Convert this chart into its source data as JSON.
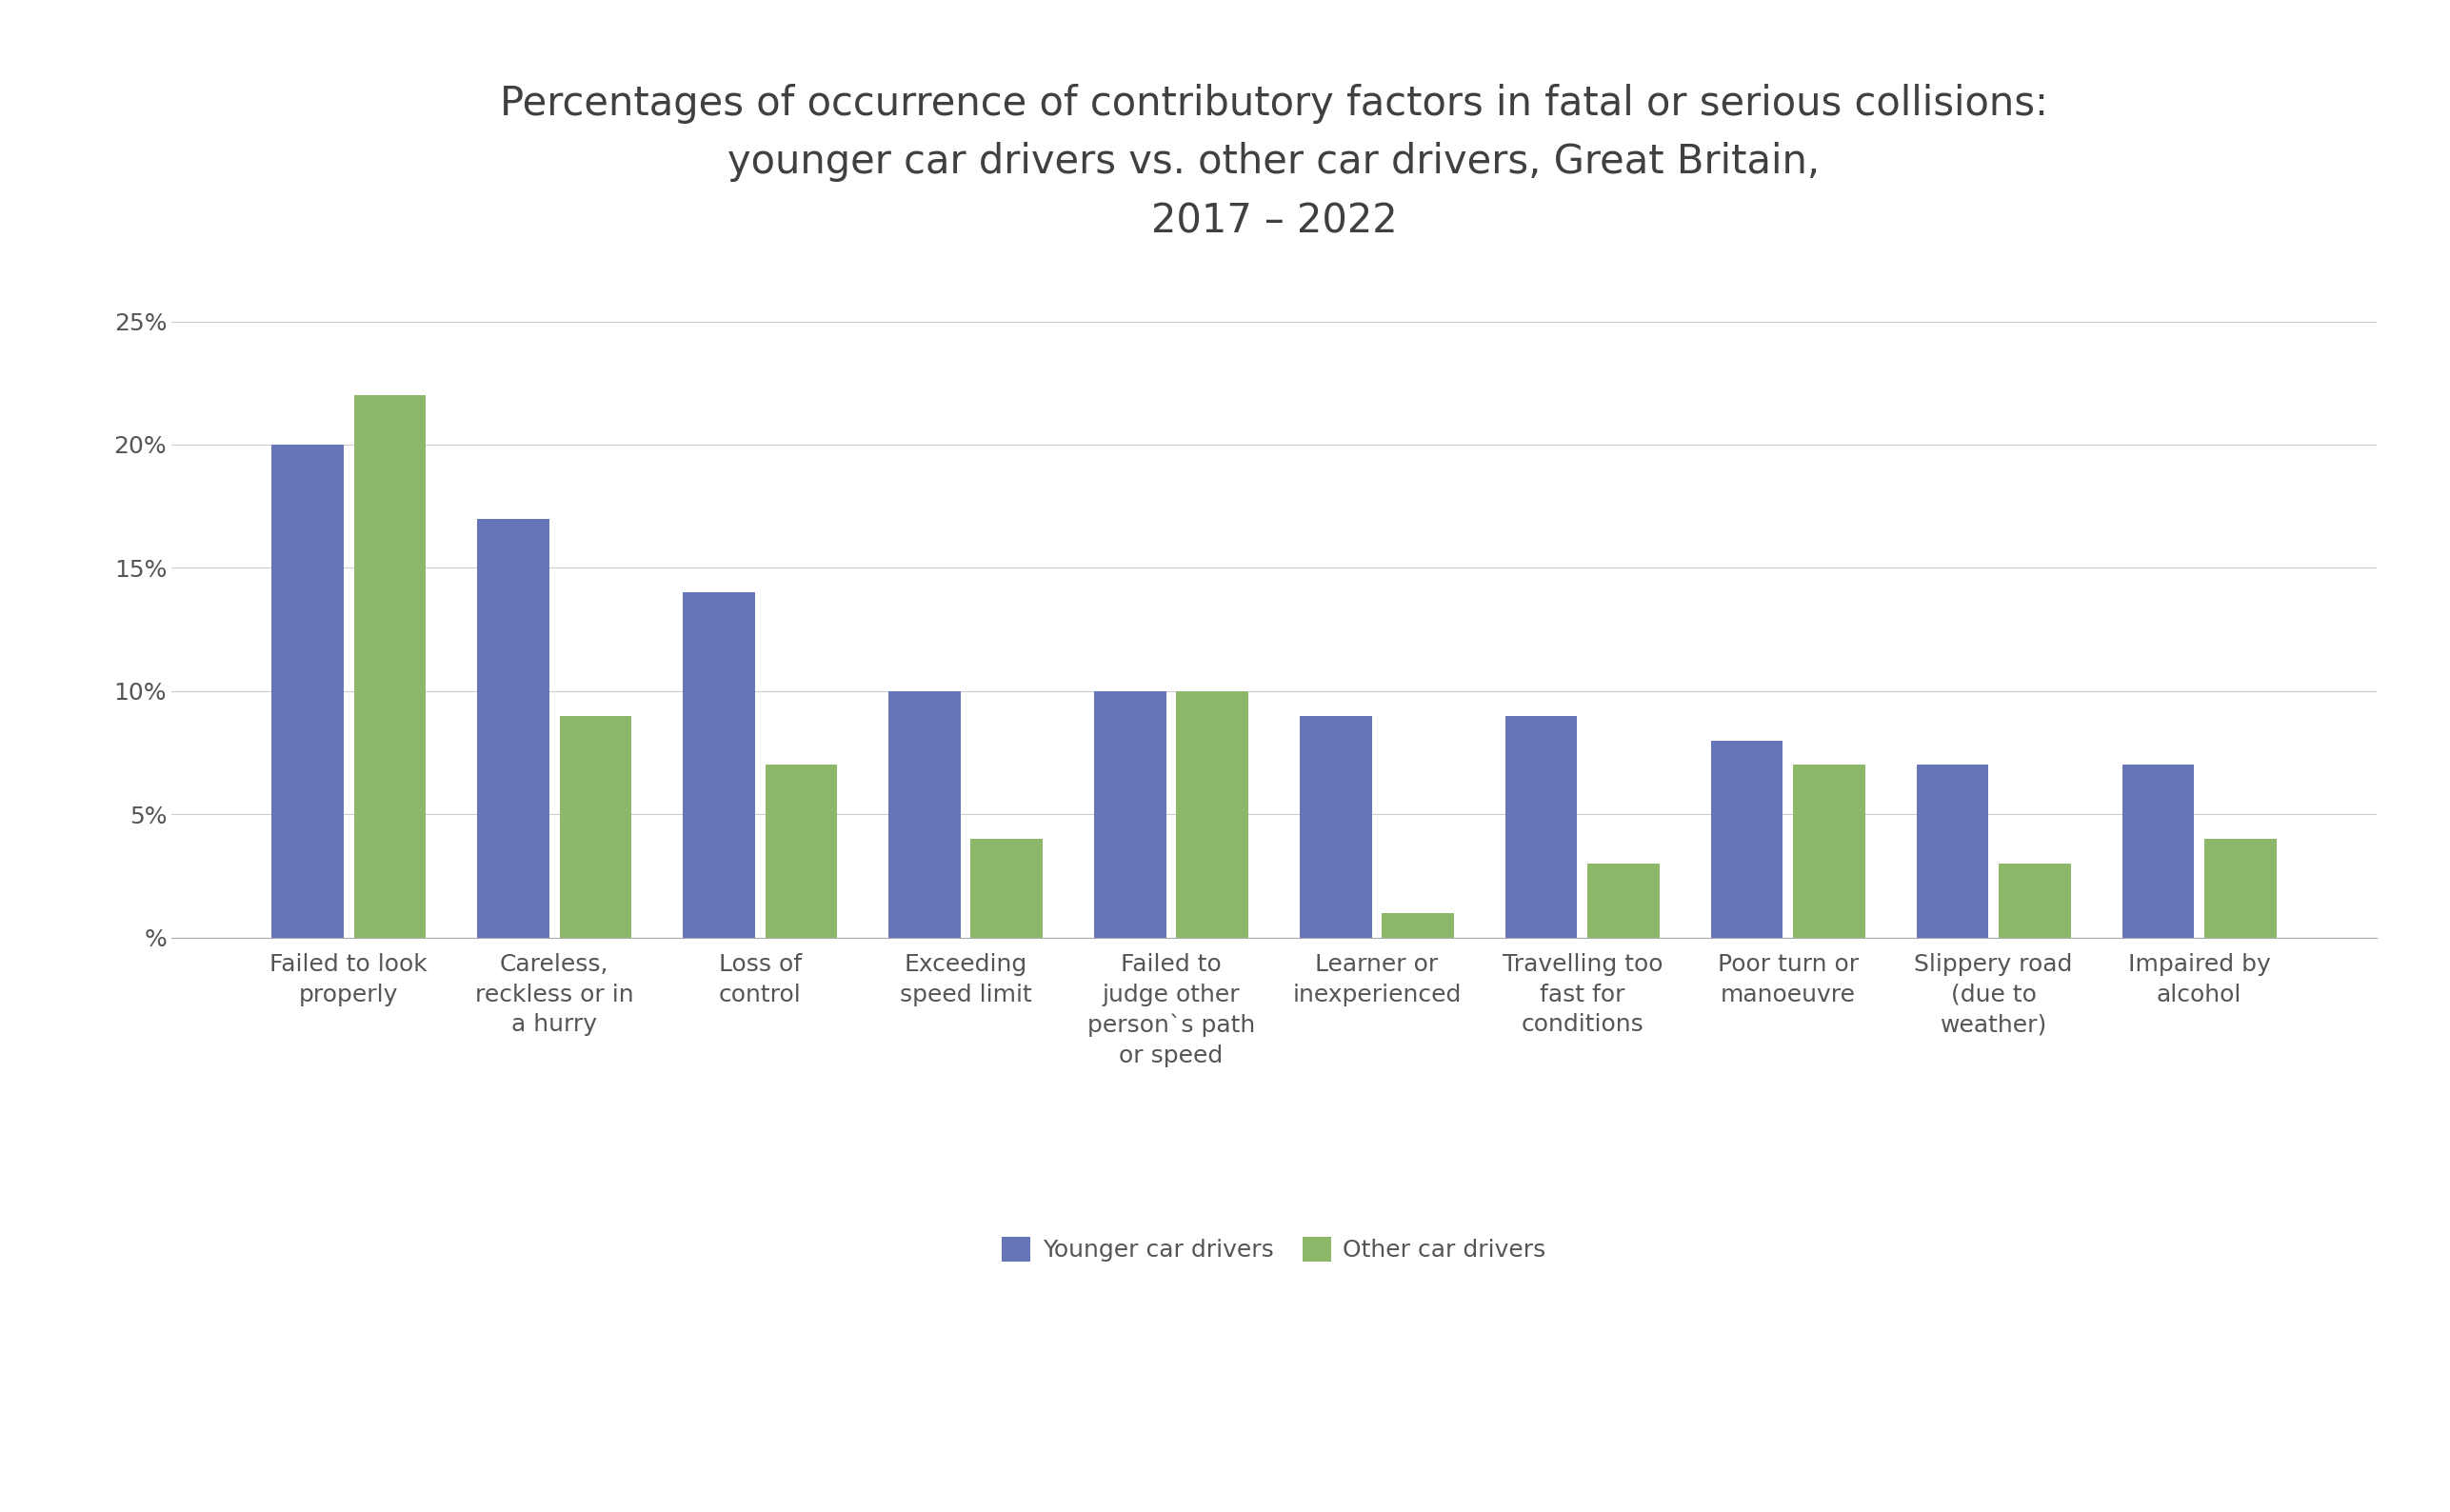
{
  "title": "Percentages of occurrence of contributory factors in fatal or serious collisions:\nyounger car drivers vs. other car drivers, Great Britain,\n2017 – 2022",
  "categories": [
    "Failed to look\nproperly",
    "Careless,\nreckless or in\na hurry",
    "Loss of\ncontrol",
    "Exceeding\nspeed limit",
    "Failed to\njudge other\nperson`s path\nor speed",
    "Learner or\ninexperienced",
    "Travelling too\nfast for\nconditions",
    "Poor turn or\nmanoeuvre",
    "Slippery road\n(due to\nweather)",
    "Impaired by\nalcohol"
  ],
  "younger_drivers": [
    20,
    17,
    14,
    10,
    10,
    9,
    9,
    8,
    7,
    7
  ],
  "other_drivers": [
    22,
    9,
    7,
    4,
    10,
    1,
    3,
    7,
    3,
    4
  ],
  "younger_color": "#6674B8",
  "other_color": "#8DB86A",
  "ylim": [
    0,
    27
  ],
  "yticks": [
    0,
    5,
    10,
    15,
    20,
    25
  ],
  "ytick_labels": [
    "%",
    "5%",
    "10%",
    "15%",
    "20%",
    "25%"
  ],
  "legend_labels": [
    "Younger car drivers",
    "Other car drivers"
  ],
  "background_color": "#ffffff",
  "title_fontsize": 30,
  "tick_fontsize": 18,
  "legend_fontsize": 18,
  "bar_width": 0.35,
  "bar_gap": 0.05
}
